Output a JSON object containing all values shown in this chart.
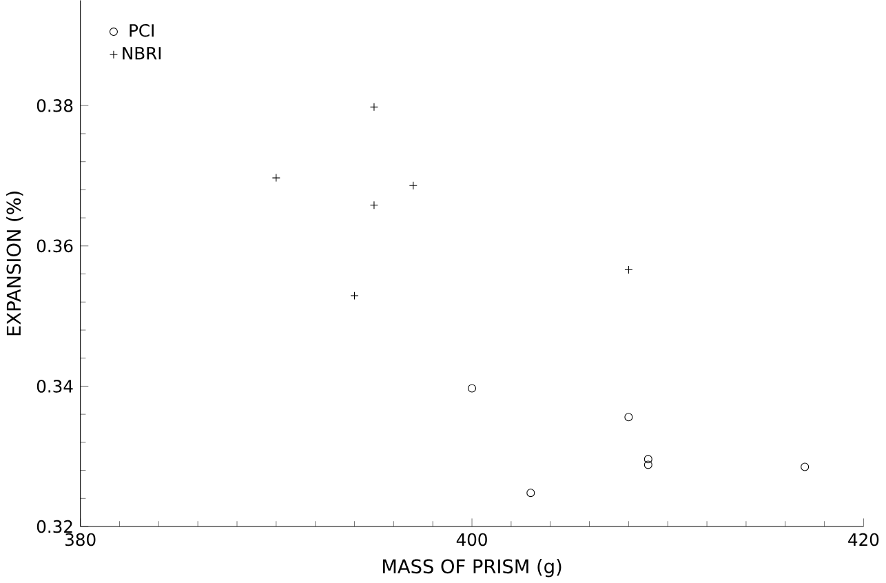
{
  "chart_data": {
    "type": "scatter",
    "xlabel": "MASS OF PRISM (g)",
    "ylabel": "EXPANSION (%)",
    "xlim": [
      380,
      420
    ],
    "ylim": [
      0.32,
      0.395
    ],
    "xticks": [
      380,
      400,
      420
    ],
    "yticks": [
      0.32,
      0.34,
      0.36,
      0.38
    ],
    "legend": "top left",
    "grid": false,
    "series": [
      {
        "name": "PCI",
        "color": "#000000",
        "marker": "circle",
        "x": [
          400,
          403,
          408,
          409,
          409,
          417
        ],
        "values": [
          0.3397,
          0.3248,
          0.3356,
          0.3296,
          0.3288,
          0.3285
        ]
      },
      {
        "name": "NBRI",
        "color": "#000000",
        "marker": "cross",
        "x": [
          390,
          395,
          395,
          397,
          394,
          408
        ],
        "values": [
          0.3697,
          0.3798,
          0.3658,
          0.3686,
          0.3529,
          0.3566
        ]
      }
    ]
  }
}
